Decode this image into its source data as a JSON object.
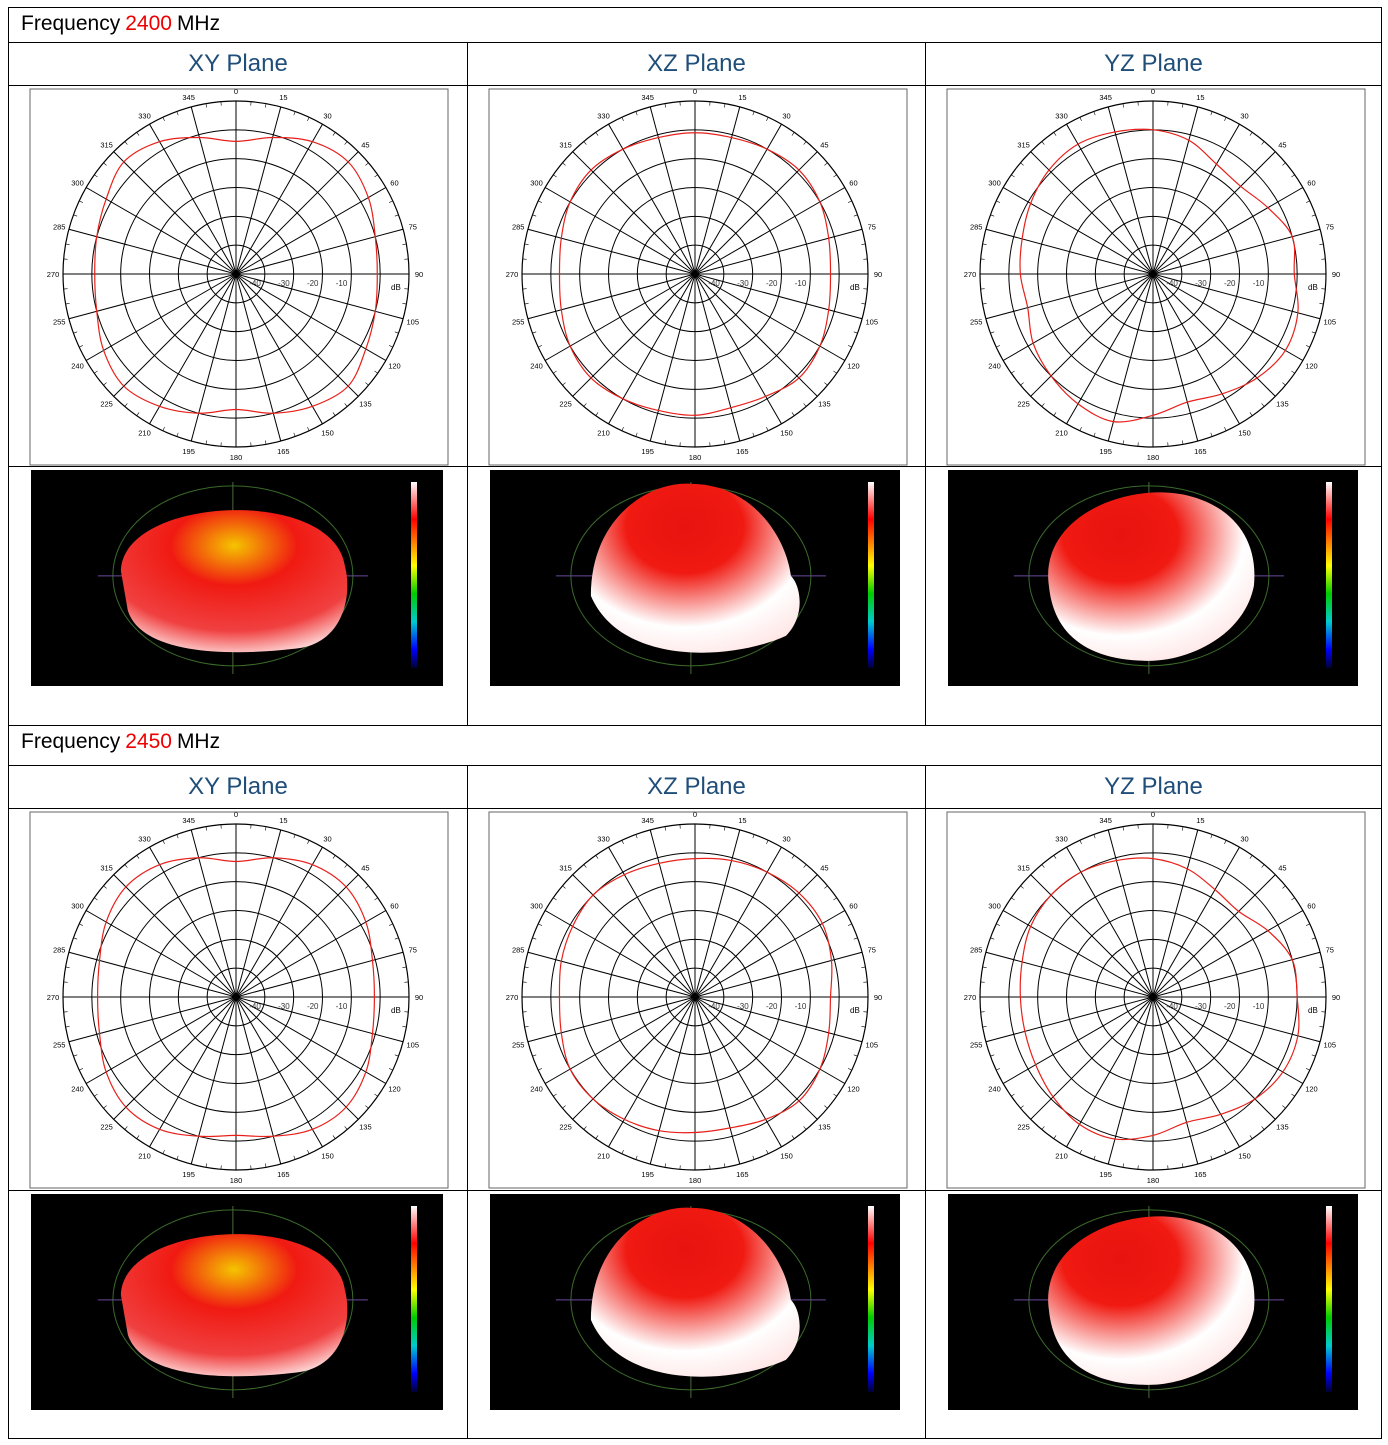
{
  "polar": {
    "angles": [
      0,
      15,
      30,
      45,
      60,
      75,
      90,
      105,
      120,
      135,
      150,
      165,
      180,
      195,
      210,
      225,
      240,
      255,
      270,
      285,
      300,
      315,
      330,
      345
    ],
    "rlim": [
      -50,
      10
    ],
    "rticks": [
      -40,
      -30,
      -20,
      -10
    ],
    "unit": "dB",
    "color": "#e8201a"
  },
  "sections": [
    {
      "frequency": {
        "label": "Frequency",
        "value": "2400",
        "unit": "MHz"
      },
      "planes": [
        {
          "title": "XY Plane",
          "pattern": [
            -4,
            -1,
            3,
            5,
            3,
            0,
            -1,
            0,
            2,
            5,
            3,
            0,
            -3,
            0,
            3,
            5,
            3,
            0,
            -1,
            0,
            2,
            5,
            3,
            -1
          ]
        },
        {
          "title": "XZ Plane",
          "pattern": [
            -1,
            -1,
            0,
            1,
            0,
            -2,
            -3,
            -2,
            0,
            1,
            -1,
            -2,
            -1,
            -1,
            0,
            1,
            0,
            -2,
            -3,
            -2,
            0,
            1,
            0,
            -1
          ]
        },
        {
          "title": "YZ Plane",
          "pattern": [
            0,
            -2,
            -6,
            -7,
            -4,
            0,
            -1,
            2,
            3,
            1,
            -2,
            -4,
            -1,
            3,
            2,
            0,
            -2,
            -5,
            -4,
            -3,
            -1,
            1,
            2,
            1
          ]
        }
      ]
    },
    {
      "frequency": {
        "label": "Frequency",
        "value": "2450",
        "unit": "MHz"
      },
      "planes": [
        {
          "title": "XY Plane",
          "pattern": [
            -3,
            0,
            3,
            4,
            2,
            -1,
            -2,
            -1,
            2,
            4,
            3,
            0,
            -2,
            0,
            3,
            4,
            2,
            -1,
            -2,
            -1,
            2,
            4,
            3,
            0
          ]
        },
        {
          "title": "XZ Plane",
          "pattern": [
            -2,
            -1,
            0,
            1,
            1,
            -1,
            -3,
            -2,
            0,
            1,
            -1,
            -3,
            -3,
            -2,
            -1,
            0,
            0,
            -2,
            -3,
            -2,
            -1,
            0,
            -1,
            -2
          ]
        },
        {
          "title": "YZ Plane",
          "pattern": [
            -2,
            -4,
            -7,
            -8,
            -4,
            0,
            0,
            2,
            2,
            0,
            -3,
            -5,
            -2,
            1,
            1,
            -1,
            -3,
            -4,
            -4,
            -3,
            -1,
            0,
            0,
            -1
          ]
        }
      ]
    }
  ]
}
